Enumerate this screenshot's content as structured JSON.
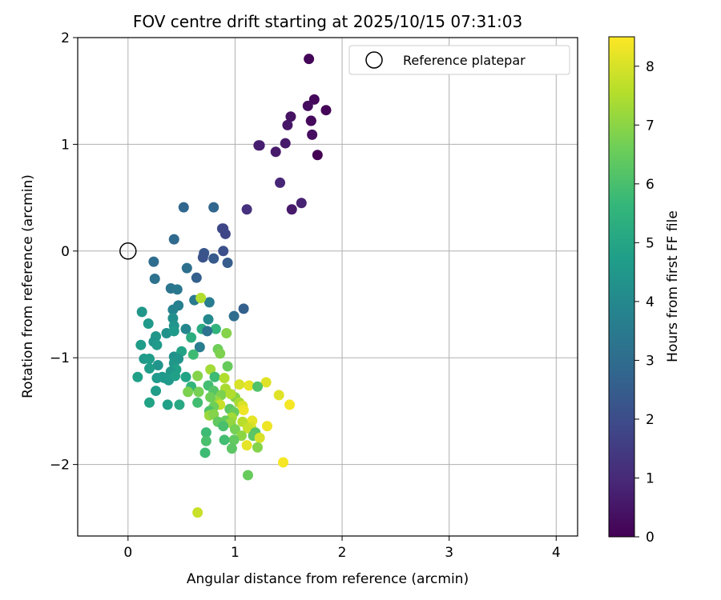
{
  "chart_data": {
    "type": "scatter",
    "title": "FOV centre drift starting at 2025/10/15 07:31:03",
    "xlabel": "Angular distance from reference (arcmin)",
    "ylabel": "Rotation from reference (arcmin)",
    "xlim": [
      -0.47,
      4.2
    ],
    "ylim": [
      -2.67,
      2.0
    ],
    "xticks": [
      0,
      1,
      2,
      3,
      4
    ],
    "yticks": [
      -2,
      -1,
      0,
      1,
      2
    ],
    "grid": true,
    "legend": {
      "placement": "top-right",
      "entries": [
        "Reference platepar"
      ]
    },
    "reference_point": {
      "x": 0,
      "y": 0,
      "label": "Reference platepar"
    },
    "colorbar": {
      "label": "Hours from first FF file",
      "range": [
        0,
        8.5
      ],
      "ticks": [
        0,
        1,
        2,
        3,
        4,
        5,
        6,
        7,
        8
      ],
      "colormap": "viridis"
    },
    "colormap_stops": [
      "#440154",
      "#482878",
      "#3e4989",
      "#31688e",
      "#26828e",
      "#1f9e89",
      "#35b779",
      "#6ece58",
      "#b5de2b",
      "#fde725"
    ],
    "points": [
      [
        1.69,
        1.8,
        0.1
      ],
      [
        1.74,
        1.42,
        0.2
      ],
      [
        1.85,
        1.32,
        0.1
      ],
      [
        1.68,
        1.36,
        0.3
      ],
      [
        1.52,
        1.26,
        0.4
      ],
      [
        1.71,
        1.22,
        0.1
      ],
      [
        1.71,
        1.22,
        0.2
      ],
      [
        1.49,
        1.18,
        0.5
      ],
      [
        1.72,
        1.09,
        0.3
      ],
      [
        1.47,
        1.01,
        0.6
      ],
      [
        1.22,
        0.99,
        0.8
      ],
      [
        1.23,
        0.99,
        0.7
      ],
      [
        1.38,
        0.93,
        0.6
      ],
      [
        1.77,
        0.9,
        0.0
      ],
      [
        1.42,
        0.64,
        0.9
      ],
      [
        1.62,
        0.45,
        0.8
      ],
      [
        1.53,
        0.39,
        0.6
      ],
      [
        1.11,
        0.39,
        1.2
      ],
      [
        0.52,
        0.41,
        2.8
      ],
      [
        0.8,
        0.41,
        2.8
      ],
      [
        0.88,
        0.21,
        1.9
      ],
      [
        0.89,
        0.21,
        1.8
      ],
      [
        0.91,
        0.16,
        1.8
      ],
      [
        0.43,
        0.11,
        2.9
      ],
      [
        0.71,
        -0.02,
        2.3
      ],
      [
        0.89,
        0.0,
        2.1
      ],
      [
        0.7,
        -0.06,
        2.2
      ],
      [
        0.8,
        -0.07,
        2.4
      ],
      [
        0.93,
        -0.11,
        2.5
      ],
      [
        0.24,
        -0.1,
        3.0
      ],
      [
        0.55,
        -0.16,
        3.1
      ],
      [
        0.64,
        -0.25,
        2.6
      ],
      [
        0.25,
        -0.26,
        3.2
      ],
      [
        0.4,
        -0.35,
        3.3
      ],
      [
        0.46,
        -0.36,
        3.4
      ],
      [
        0.62,
        -0.46,
        3.5
      ],
      [
        0.76,
        -0.48,
        3.6
      ],
      [
        0.47,
        -0.51,
        3.7
      ],
      [
        1.08,
        -0.54,
        2.6
      ],
      [
        0.42,
        -0.55,
        3.8
      ],
      [
        0.13,
        -0.57,
        4.5
      ],
      [
        0.99,
        -0.61,
        3.0
      ],
      [
        0.75,
        -0.64,
        4.0
      ],
      [
        0.42,
        -0.63,
        4.2
      ],
      [
        0.19,
        -0.68,
        4.6
      ],
      [
        0.43,
        -0.7,
        4.4
      ],
      [
        0.69,
        -0.73,
        5.2
      ],
      [
        0.54,
        -0.73,
        3.9
      ],
      [
        0.82,
        -0.73,
        5.5
      ],
      [
        0.36,
        -0.77,
        4.3
      ],
      [
        0.43,
        -0.75,
        4.6
      ],
      [
        0.26,
        -0.8,
        4.5
      ],
      [
        0.92,
        -0.77,
        6.9
      ],
      [
        0.74,
        -0.75,
        3.2
      ],
      [
        0.59,
        -0.81,
        5.3
      ],
      [
        0.12,
        -0.88,
        4.7
      ],
      [
        0.24,
        -0.85,
        4.4
      ],
      [
        0.27,
        -0.88,
        4.6
      ],
      [
        0.67,
        -0.9,
        3.6
      ],
      [
        0.84,
        -0.92,
        6.6
      ],
      [
        0.43,
        -0.99,
        4.3
      ],
      [
        0.5,
        -0.94,
        4.9
      ],
      [
        0.61,
        -0.97,
        5.8
      ],
      [
        0.47,
        -1.01,
        4.4
      ],
      [
        0.15,
        -1.01,
        4.6
      ],
      [
        0.2,
        -1.01,
        4.7
      ],
      [
        0.86,
        -0.96,
        6.8
      ],
      [
        0.43,
        -1.05,
        4.5
      ],
      [
        0.93,
        -1.08,
        6.5
      ],
      [
        0.28,
        -1.07,
        4.4
      ],
      [
        0.2,
        -1.1,
        4.7
      ],
      [
        0.45,
        -1.11,
        4.8
      ],
      [
        0.77,
        -1.11,
        7.3
      ],
      [
        0.4,
        -1.13,
        4.5
      ],
      [
        0.54,
        -1.18,
        4.9
      ],
      [
        0.34,
        -1.19,
        4.7
      ],
      [
        0.32,
        -1.18,
        4.6
      ],
      [
        0.09,
        -1.18,
        4.8
      ],
      [
        0.27,
        -1.19,
        4.6
      ],
      [
        0.81,
        -1.18,
        5.8
      ],
      [
        0.65,
        -1.17,
        6.9
      ],
      [
        0.38,
        -1.21,
        4.6
      ],
      [
        0.9,
        -1.19,
        7.5
      ],
      [
        0.44,
        -1.17,
        4.8
      ],
      [
        1.04,
        -1.25,
        8.0
      ],
      [
        0.75,
        -1.26,
        5.9
      ],
      [
        0.59,
        -1.27,
        5.6
      ],
      [
        0.26,
        -1.31,
        4.7
      ],
      [
        1.29,
        -1.23,
        8.1
      ],
      [
        1.13,
        -1.26,
        8.2
      ],
      [
        0.56,
        -1.32,
        6.8
      ],
      [
        0.66,
        -1.32,
        6.7
      ],
      [
        0.8,
        -1.31,
        6.2
      ],
      [
        0.91,
        -1.29,
        7.4
      ],
      [
        1.21,
        -1.27,
        6.1
      ],
      [
        0.87,
        -1.35,
        6.8
      ],
      [
        0.83,
        -1.41,
        7.2
      ],
      [
        0.77,
        -1.37,
        6.6
      ],
      [
        1.0,
        -1.37,
        6.9
      ],
      [
        0.96,
        -1.34,
        7.5
      ],
      [
        0.86,
        -1.44,
        7.8
      ],
      [
        1.04,
        -1.42,
        7.4
      ],
      [
        1.07,
        -1.45,
        8.0
      ],
      [
        1.41,
        -1.35,
        8.1
      ],
      [
        0.65,
        -1.42,
        5.9
      ],
      [
        0.37,
        -1.44,
        4.8
      ],
      [
        0.48,
        -1.44,
        5.1
      ],
      [
        0.2,
        -1.42,
        4.9
      ],
      [
        0.8,
        -1.46,
        6.6
      ],
      [
        0.95,
        -1.48,
        6.3
      ],
      [
        1.08,
        -1.49,
        8.3
      ],
      [
        1.51,
        -1.44,
        8.4
      ],
      [
        0.76,
        -1.5,
        6.1
      ],
      [
        0.99,
        -1.51,
        6.5
      ],
      [
        0.76,
        -1.54,
        7.2
      ],
      [
        0.8,
        -1.53,
        6.9
      ],
      [
        0.97,
        -1.56,
        7.3
      ],
      [
        0.91,
        -1.59,
        6.5
      ],
      [
        1.16,
        -1.59,
        8.2
      ],
      [
        1.07,
        -1.6,
        7.6
      ],
      [
        0.96,
        -1.61,
        7.1
      ],
      [
        0.84,
        -1.6,
        6.4
      ],
      [
        0.89,
        -1.64,
        6.0
      ],
      [
        1.15,
        -1.65,
        8.0
      ],
      [
        1.12,
        -1.66,
        7.8
      ],
      [
        1.3,
        -1.64,
        8.3
      ],
      [
        1.0,
        -1.67,
        6.7
      ],
      [
        1.19,
        -1.7,
        6.2
      ],
      [
        0.73,
        -1.7,
        5.8
      ],
      [
        1.06,
        -1.73,
        7.0
      ],
      [
        1.17,
        -1.73,
        6.3
      ],
      [
        1.23,
        -1.75,
        8.0
      ],
      [
        0.99,
        -1.77,
        6.4
      ],
      [
        0.9,
        -1.77,
        5.9
      ],
      [
        0.73,
        -1.78,
        6.0
      ],
      [
        1.11,
        -1.82,
        8.2
      ],
      [
        1.21,
        -1.84,
        6.9
      ],
      [
        0.97,
        -1.85,
        6.3
      ],
      [
        0.72,
        -1.89,
        5.8
      ],
      [
        1.45,
        -1.98,
        8.4
      ],
      [
        1.12,
        -2.1,
        6.5
      ],
      [
        0.65,
        -2.45,
        7.8
      ],
      [
        0.68,
        -0.44,
        7.5
      ]
    ]
  }
}
